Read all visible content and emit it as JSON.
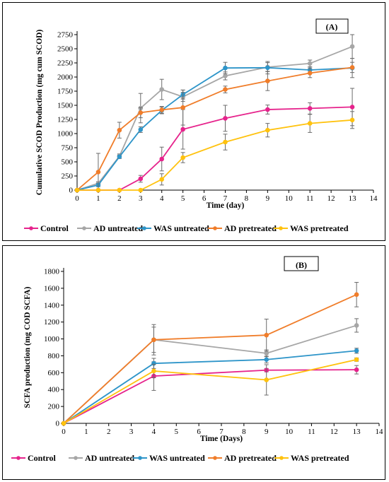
{
  "chart_data": [
    {
      "type": "line",
      "panel_label": "(A)",
      "xlabel": "Time (day)",
      "ylabel": "Cumulative SCOD Production (mg cum SCOD)",
      "xlim": [
        0,
        14
      ],
      "ylim": [
        0,
        2750
      ],
      "xticks": [
        0,
        1,
        2,
        3,
        4,
        5,
        6,
        7,
        8,
        9,
        10,
        11,
        12,
        13,
        14
      ],
      "yticks": [
        0,
        250,
        500,
        750,
        1000,
        1250,
        1500,
        1750,
        2000,
        2250,
        2500,
        2750
      ],
      "x": [
        0,
        1,
        2,
        3,
        4,
        5,
        7,
        9,
        11,
        13
      ],
      "legend_position": "bottom",
      "series": [
        {
          "name": "Control",
          "color": "#e6238c",
          "values": [
            0,
            0,
            0,
            200,
            550,
            1075,
            1270,
            1425,
            1445,
            1470
          ],
          "errors": [
            0,
            0,
            0,
            60,
            210,
            350,
            230,
            80,
            100,
            330
          ]
        },
        {
          "name": "AD untreated",
          "color": "#a6a6a6",
          "values": [
            0,
            120,
            600,
            1450,
            1780,
            1650,
            2020,
            2175,
            2240,
            2540
          ],
          "errors": [
            0,
            30,
            40,
            260,
            180,
            80,
            70,
            80,
            60,
            210
          ]
        },
        {
          "name": "WAS untreated",
          "color": "#2e95c9",
          "values": [
            0,
            90,
            590,
            1070,
            1410,
            1690,
            2160,
            2165,
            2125,
            2160
          ],
          "errors": [
            0,
            30,
            30,
            50,
            60,
            80,
            100,
            110,
            50,
            170
          ]
        },
        {
          "name": "AD pretreated",
          "color": "#f07d2a",
          "values": [
            0,
            320,
            1060,
            1370,
            1420,
            1460,
            1780,
            1930,
            2070,
            2170
          ],
          "errors": [
            0,
            330,
            140,
            90,
            60,
            310,
            60,
            170,
            80,
            90
          ]
        },
        {
          "name": "WAS pretreated",
          "color": "#ffc20e",
          "values": [
            0,
            0,
            0,
            0,
            190,
            575,
            850,
            1060,
            1180,
            1240
          ],
          "errors": [
            0,
            0,
            0,
            0,
            100,
            90,
            140,
            120,
            160,
            150
          ]
        }
      ]
    },
    {
      "type": "line",
      "panel_label": "(B)",
      "xlabel": "Time (Days)",
      "ylabel": "SCFA production (mg COD SCFA)",
      "xlim": [
        0,
        14
      ],
      "ylim": [
        0,
        1800
      ],
      "xticks": [
        0,
        1,
        2,
        3,
        4,
        5,
        6,
        7,
        8,
        9,
        10,
        11,
        12,
        13,
        14
      ],
      "yticks": [
        0,
        200,
        400,
        600,
        800,
        1000,
        1200,
        1400,
        1600,
        1800
      ],
      "x": [
        0,
        4,
        9,
        13
      ],
      "legend_position": "bottom",
      "series": [
        {
          "name": "Control",
          "color": "#e6238c",
          "values": [
            0,
            560,
            630,
            635
          ],
          "errors": [
            0,
            170,
            20,
            50
          ]
        },
        {
          "name": "AD untreated",
          "color": "#a6a6a6",
          "values": [
            0,
            990,
            830,
            1160
          ],
          "errors": [
            0,
            180,
            40,
            80
          ]
        },
        {
          "name": "WAS untreated",
          "color": "#2e95c9",
          "values": [
            0,
            710,
            755,
            860
          ],
          "errors": [
            0,
            60,
            40,
            30
          ]
        },
        {
          "name": "AD pretreated",
          "color": "#f07d2a",
          "values": [
            0,
            990,
            1045,
            1525
          ],
          "errors": [
            0,
            150,
            190,
            145
          ]
        },
        {
          "name": "WAS pretreated",
          "color": "#ffc20e",
          "values": [
            0,
            620,
            515,
            755
          ],
          "errors": [
            0,
            80,
            180,
            20
          ]
        }
      ]
    }
  ]
}
